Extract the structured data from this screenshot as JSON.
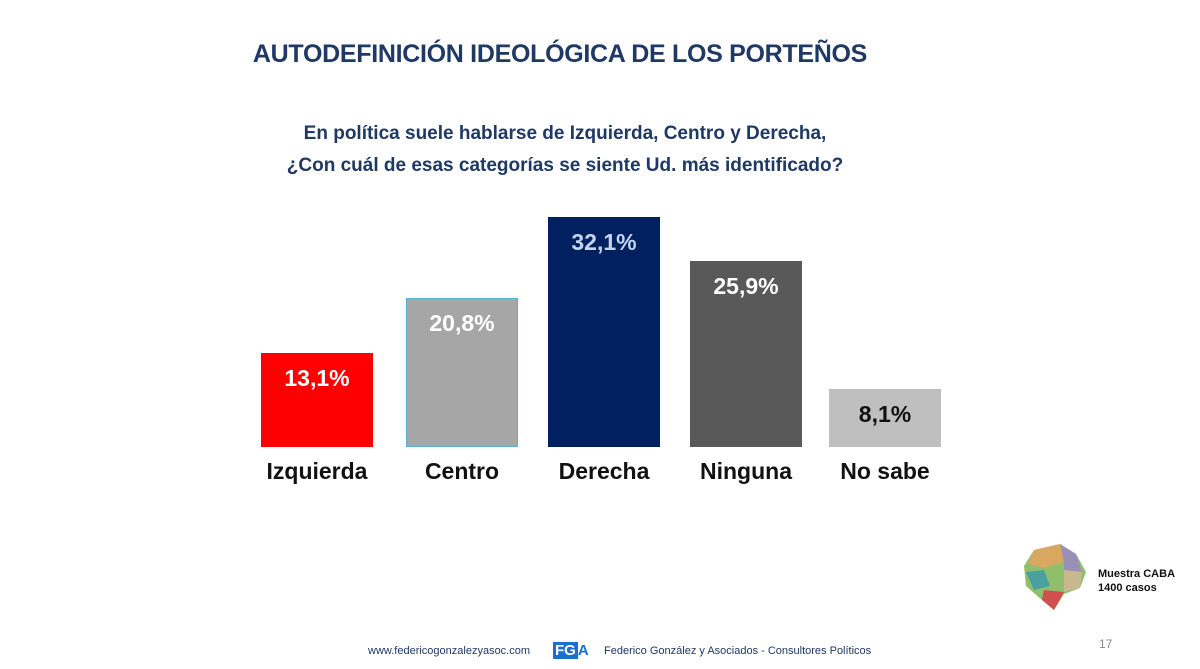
{
  "title": "AUTODEFINICIÓN IDEOLÓGICA DE LOS PORTEÑOS",
  "question_line1": "En política suele hablarse de Izquierda, Centro y Derecha,",
  "question_line2": "¿Con cuál de esas categorías se siente Ud. más identificado?",
  "chart_data": {
    "type": "bar",
    "title": "AUTODEFINICIÓN IDEOLÓGICA DE LOS PORTEÑOS",
    "categories": [
      "Izquierda",
      "Centro",
      "Derecha",
      "Ninguna",
      "No sabe"
    ],
    "values": [
      13.1,
      20.8,
      32.1,
      25.9,
      8.1
    ],
    "labels": [
      "13,1%",
      "20,8%",
      "32,1%",
      "25,9%",
      "8,1%"
    ],
    "colors": [
      "#ff0000",
      "#a6a6a6",
      "#002060",
      "#595959",
      "#bfbfbf"
    ],
    "label_colors": [
      "#ffffff",
      "#ffffff",
      "#c5d5ee",
      "#ffffff",
      "#111111"
    ],
    "xlabel": "",
    "ylabel": "",
    "ylim": [
      0,
      35
    ],
    "grid": false
  },
  "sample": {
    "line1": "Muestra CABA",
    "line2": "1400 casos"
  },
  "footer": {
    "website": "www.federicogonzalezyasoc.com",
    "logo": "FGA",
    "company": "Federico González y Asociados - Consultores Políticos"
  },
  "page_number": "17"
}
